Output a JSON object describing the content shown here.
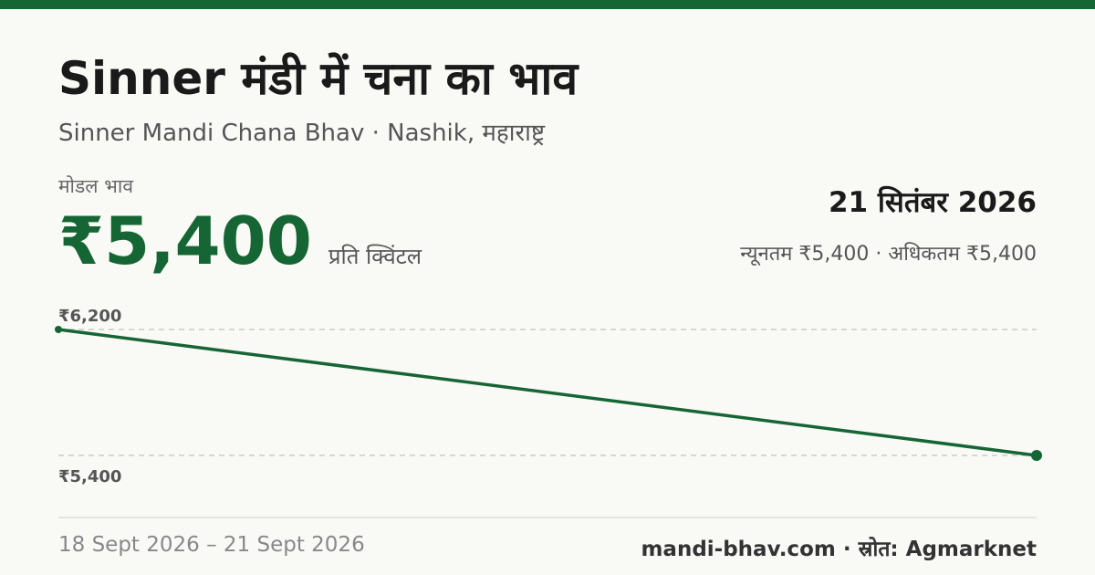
{
  "header": {
    "title": "Sinner मंडी में चना का भाव",
    "subtitle": "Sinner Mandi Chana Bhav · Nashik, महाराष्ट्र"
  },
  "price": {
    "label": "मोडल भाव",
    "value": "₹5,400",
    "unit": "प्रति क्विंटल"
  },
  "summary": {
    "date": "21 सितंबर 2026",
    "range": "न्यूनतम ₹5,400 · अधिकतम ₹5,400"
  },
  "chart_data": {
    "type": "line",
    "x": [
      "18 Sept 2026",
      "21 Sept 2026"
    ],
    "series": [
      {
        "values": [
          6200,
          5400
        ]
      }
    ],
    "ytick_labels": [
      "₹6,200",
      "₹5,400"
    ],
    "ylim": [
      5400,
      6200
    ],
    "grid": true,
    "line_color": "#166534"
  },
  "footer": {
    "date_range": "18 Sept 2026 – 21 Sept 2026",
    "source": "mandi-bhav.com · स्रोत: Agmarknet"
  },
  "colors": {
    "accent": "#166534",
    "background": "#f9faf6"
  }
}
